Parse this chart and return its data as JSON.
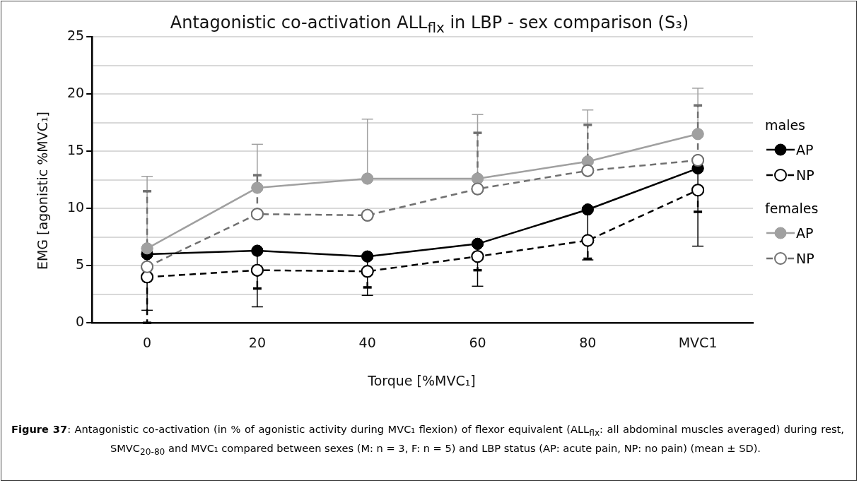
{
  "chart_data": {
    "type": "line",
    "title": "Antagonistic co-activation ALL$_{flx}$ in LBP - sex comparison (S₃)",
    "xlabel": "Torque [%MVC₁]",
    "ylabel": "EMG [agonistic %MVC₁]",
    "categories": [
      "0",
      "20",
      "40",
      "60",
      "80",
      "MVC1"
    ],
    "ylim": [
      0,
      25
    ],
    "yticks": [
      0,
      {
        "value": 2.5,
        "label": null
      },
      5,
      {
        "value": 7.5,
        "label": null
      },
      10,
      {
        "value": 12.5,
        "label": null
      },
      15,
      {
        "value": 17.5,
        "label": null
      },
      20,
      {
        "value": 22.5,
        "label": null
      },
      25
    ],
    "grid": "y",
    "legend": "right",
    "marker": "circle",
    "annotations": [
      "males",
      "females",
      "Figure 37: Antagonistic co-activation (in % of agonistic activity during MVC₁ flexion) of flexor equivalent (ALL$_{flx}$: all abdominal muscles averaged) during rest, SMVC$_{20-80}$ and MVC₁ compared between sexes (M: n = 3, F: n = 5) and LBP status (AP: acute pain, NP: no pain) (mean ± SD)."
    ],
    "series": [
      {
        "name": "AP",
        "color": "#000000",
        "line_style": "solid",
        "values": [
          6.0,
          6.3,
          5.8,
          6.9,
          9.9,
          13.5
        ],
        "errors": [
          [
            1.1,
            6.0
          ],
          [
            1.4,
            6.3
          ],
          [
            2.4,
            5.8
          ],
          [
            3.2,
            6.9
          ],
          [
            5.5,
            9.9
          ],
          [
            6.7,
            13.5
          ]
        ]
      },
      {
        "name": "NP",
        "color": "#000000",
        "line_style": "dashed",
        "marker": "circle-open",
        "values": [
          4.0,
          4.6,
          4.5,
          5.8,
          7.2,
          11.6
        ],
        "errors": [
          [
            0,
            4.0
          ],
          [
            3.0,
            4.6
          ],
          [
            3.1,
            4.5
          ],
          [
            4.6,
            5.8
          ],
          [
            5.6,
            7.2
          ],
          [
            9.7,
            11.6
          ]
        ]
      },
      {
        "name": "AP",
        "color": "#a0a0a0",
        "line_style": "solid",
        "values": [
          6.5,
          11.8,
          12.6,
          12.6,
          14.1,
          16.5
        ],
        "errors": [
          [
            6.5,
            12.8
          ],
          [
            11.8,
            15.6
          ],
          [
            12.6,
            17.8
          ],
          [
            12.6,
            18.2
          ],
          [
            14.1,
            18.6
          ],
          [
            16.5,
            20.5
          ]
        ]
      },
      {
        "name": "NP",
        "color": "#707070",
        "line_style": "dashed",
        "marker": "circle-open",
        "values": [
          4.9,
          9.5,
          9.4,
          11.7,
          13.3,
          14.2
        ],
        "errors": [
          [
            4.9,
            11.5
          ],
          [
            9.5,
            12.9
          ],
          null,
          [
            11.7,
            16.6
          ],
          [
            13.3,
            17.3
          ],
          [
            14.2,
            19.0
          ]
        ]
      }
    ]
  }
}
